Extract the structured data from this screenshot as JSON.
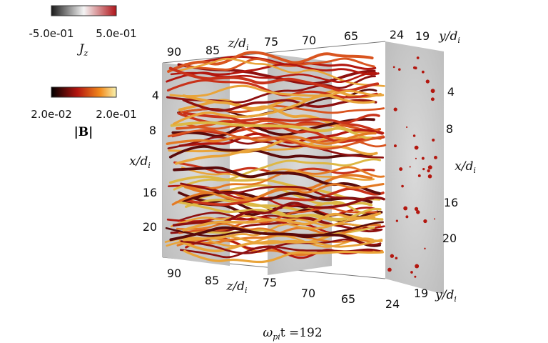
{
  "colorbars": [
    {
      "min": "-5.0e-01",
      "max": "5.0e-01",
      "label": {
        "base": "J",
        "sub": "z"
      }
    },
    {
      "min": "2.0e-02",
      "max": "2.0e-01",
      "label": "|B|"
    }
  ],
  "axes": {
    "z_top": {
      "ticks": [
        90,
        85,
        75,
        70,
        65
      ],
      "label": {
        "base": "z/d",
        "sub": "i"
      }
    },
    "y_top": {
      "ticks": [
        24,
        19
      ],
      "label": {
        "base": "y/d",
        "sub": "i"
      }
    },
    "x_left": {
      "ticks": [
        4,
        8,
        16,
        20
      ],
      "label": {
        "base": "x/d",
        "sub": "i"
      }
    },
    "x_right": {
      "ticks": [
        4,
        8,
        16,
        20
      ],
      "label": {
        "base": "x/d",
        "sub": "i"
      }
    },
    "z_bottom": {
      "ticks": [
        90,
        85,
        75,
        70,
        65
      ],
      "label": {
        "base": "z/d",
        "sub": "i"
      }
    },
    "y_bottom": {
      "ticks": [
        24,
        19
      ],
      "label": {
        "base": "y/d",
        "sub": "i"
      }
    }
  },
  "caption": {
    "symbol": "ω",
    "sub": "pi",
    "rest": "t =192"
  }
}
